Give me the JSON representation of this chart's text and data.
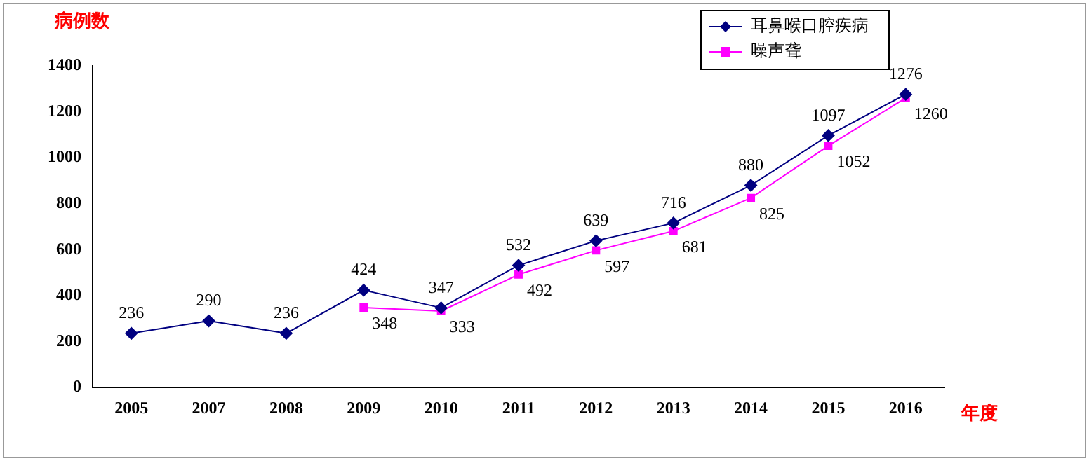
{
  "chart_data": {
    "type": "line",
    "ylabel": "病例数",
    "xlabel": "年度",
    "categories": [
      "2005",
      "2007",
      "2008",
      "2009",
      "2010",
      "2011",
      "2012",
      "2013",
      "2014",
      "2015",
      "2016"
    ],
    "series": [
      {
        "name": "耳鼻喉口腔疾病",
        "color": "#000080",
        "marker": "diamond",
        "values": [
          236,
          290,
          236,
          424,
          347,
          532,
          639,
          716,
          880,
          1097,
          1276
        ]
      },
      {
        "name": "噪声聋",
        "color": "#ff00ff",
        "marker": "square",
        "values": [
          null,
          null,
          null,
          348,
          333,
          492,
          597,
          681,
          825,
          1052,
          1260
        ]
      }
    ],
    "ylim": [
      0,
      1400
    ],
    "yticks": [
      0,
      200,
      400,
      600,
      800,
      1000,
      1200,
      1400
    ],
    "grid": false,
    "legend": "top right",
    "data_labels": true
  }
}
